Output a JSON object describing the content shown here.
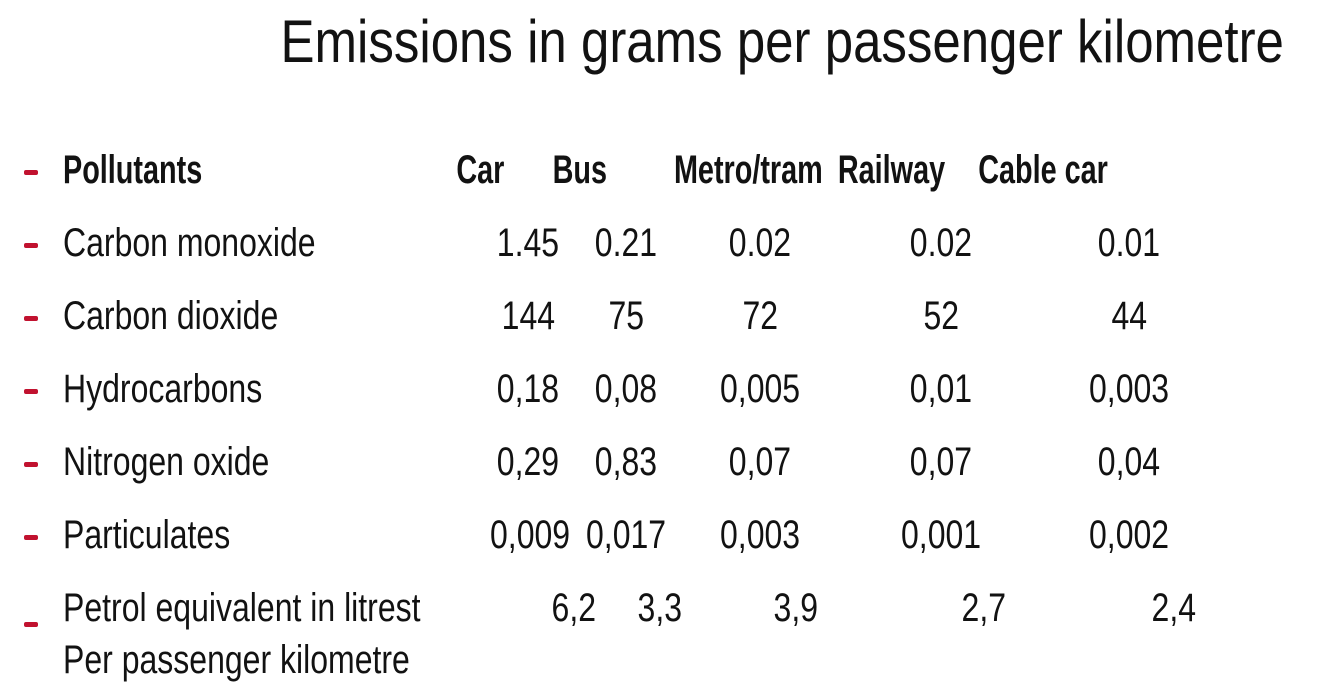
{
  "page": {
    "background": "#ffffff",
    "text_color": "#121212",
    "bullet_color": "#c1122f"
  },
  "chart_data": {
    "type": "table",
    "title": "Emissions in grams per passenger kilometre",
    "bullet_marker": "-",
    "columns": [
      "Pollutants",
      "Car",
      "Bus",
      "Metro/tram",
      "Railway",
      "Cable car"
    ],
    "rows": [
      {
        "label": "Carbon monoxide",
        "values": [
          "1.45",
          "0.21",
          "0.02",
          "0.02",
          "0.01"
        ],
        "values_numeric": [
          1.45,
          0.21,
          0.02,
          0.02,
          0.01
        ]
      },
      {
        "label": "Carbon dioxide",
        "values": [
          "144",
          "75",
          "72",
          "52",
          "44"
        ],
        "values_numeric": [
          144,
          75,
          72,
          52,
          44
        ]
      },
      {
        "label": "Hydrocarbons",
        "values": [
          "0,18",
          "0,08",
          "0,005",
          "0,01",
          "0,003"
        ],
        "values_numeric": [
          0.18,
          0.08,
          0.005,
          0.01,
          0.003
        ]
      },
      {
        "label": "Nitrogen oxide",
        "values": [
          "0,29",
          "0,83",
          "0,07",
          "0,07",
          "0,04"
        ],
        "values_numeric": [
          0.29,
          0.83,
          0.07,
          0.07,
          0.04
        ]
      },
      {
        "label": "Particulates",
        "values": [
          "0,009",
          "0,017",
          "0,003",
          "0,001",
          "0,002"
        ],
        "values_numeric": [
          0.009,
          0.017,
          0.003,
          0.001,
          0.002
        ]
      },
      {
        "label": "Petrol equivalent in litrest",
        "label_line2": "Per passenger kilometre",
        "values": [
          "6,2",
          "3,3",
          "3,9",
          "2,7",
          "2,4"
        ],
        "values_numeric": [
          6.2,
          3.3,
          3.9,
          2.7,
          2.4
        ]
      }
    ]
  }
}
